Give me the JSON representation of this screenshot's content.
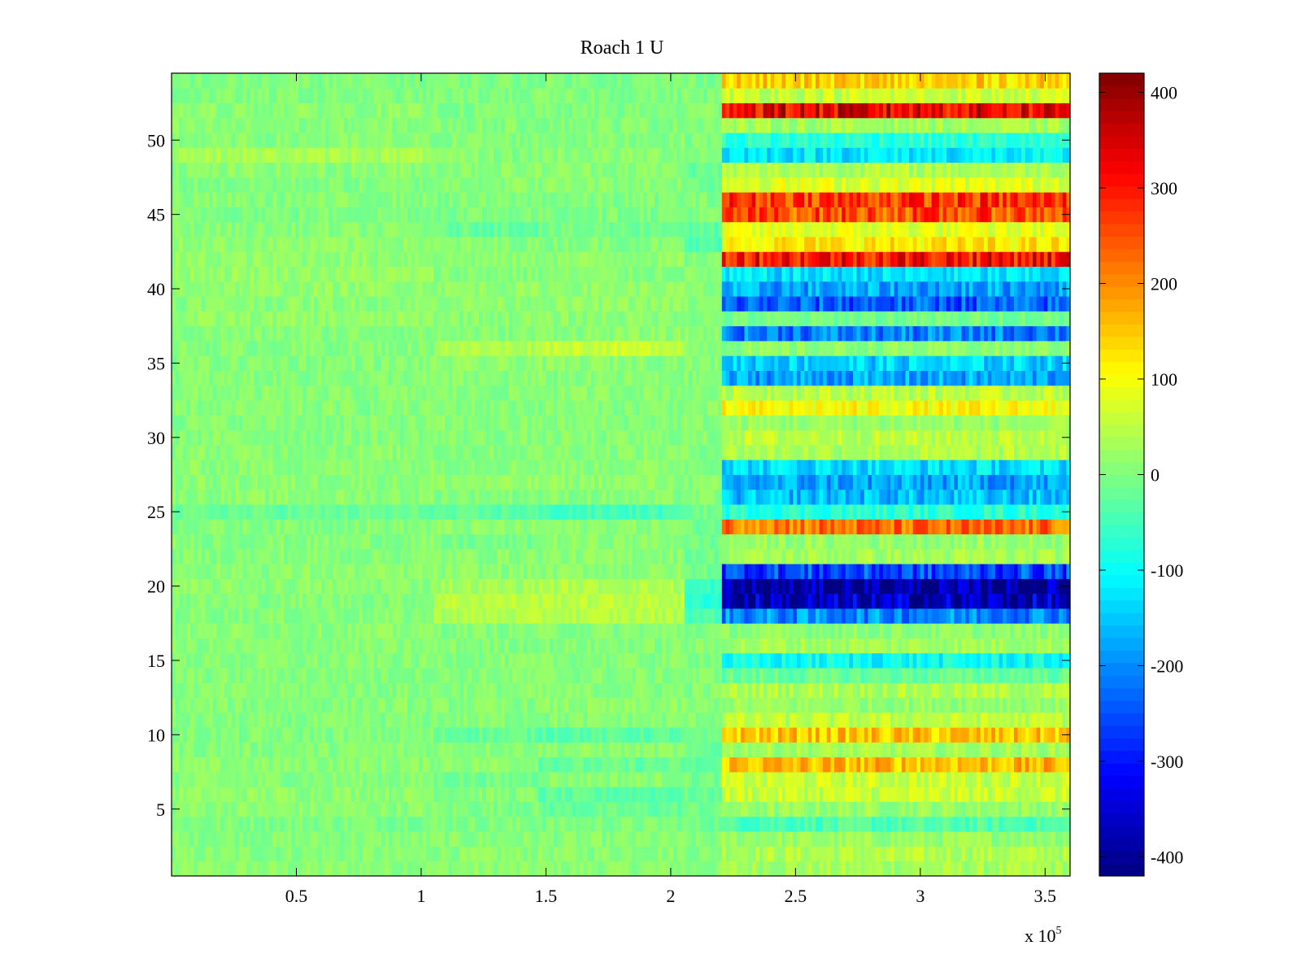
{
  "chart_data": {
    "type": "heatmap",
    "title": "Roach 1 U",
    "xlabel": "",
    "ylabel": "",
    "x_range": [
      0,
      360000
    ],
    "y_range": [
      0.5,
      54.5
    ],
    "x_ticks": [
      0.5,
      1,
      1.5,
      2,
      2.5,
      3,
      3.5
    ],
    "x_tick_labels": [
      "0.5",
      "1",
      "1.5",
      "2",
      "2.5",
      "3",
      "3.5"
    ],
    "x_multiplier_label": "x 10",
    "x_multiplier_exponent": "5",
    "y_ticks": [
      5,
      10,
      15,
      20,
      25,
      30,
      35,
      40,
      45,
      50
    ],
    "y_tick_labels": [
      "5",
      "10",
      "15",
      "20",
      "25",
      "30",
      "35",
      "40",
      "45",
      "50"
    ],
    "rows": 54,
    "change_point_x": [
      0,
      105000,
      147000,
      205000,
      220000,
      360000
    ],
    "row_means_by_segment": {
      "rows_1_to_54": {
        "seg_0_105k": [
          10,
          5,
          5,
          0,
          10,
          15,
          5,
          10,
          5,
          0,
          0,
          5,
          5,
          5,
          5,
          5,
          10,
          5,
          5,
          10,
          10,
          5,
          5,
          5,
          -20,
          10,
          10,
          10,
          10,
          5,
          5,
          5,
          5,
          5,
          5,
          5,
          5,
          15,
          10,
          15,
          20,
          15,
          15,
          5,
          0,
          5,
          0,
          10,
          35,
          5,
          5,
          10,
          0,
          0
        ],
        "seg_105k_147k": [
          10,
          10,
          5,
          0,
          0,
          5,
          -10,
          15,
          10,
          -20,
          5,
          5,
          5,
          5,
          5,
          5,
          5,
          40,
          50,
          30,
          10,
          10,
          -10,
          10,
          -30,
          5,
          15,
          10,
          5,
          5,
          5,
          5,
          5,
          5,
          10,
          40,
          5,
          10,
          15,
          15,
          5,
          10,
          5,
          -20,
          0,
          0,
          10,
          10,
          5,
          5,
          5,
          0,
          0,
          0
        ],
        "seg_147k_205k": [
          10,
          10,
          5,
          0,
          -20,
          -30,
          10,
          -20,
          10,
          -30,
          5,
          10,
          5,
          5,
          5,
          5,
          5,
          45,
          50,
          40,
          10,
          10,
          10,
          10,
          -50,
          5,
          15,
          10,
          10,
          5,
          5,
          5,
          10,
          5,
          10,
          60,
          10,
          10,
          15,
          15,
          5,
          15,
          5,
          -10,
          0,
          0,
          10,
          10,
          10,
          5,
          5,
          0,
          0,
          0
        ],
        "seg_205k_220k": [
          5,
          5,
          0,
          -10,
          -10,
          -20,
          -10,
          -30,
          -20,
          -20,
          5,
          5,
          5,
          5,
          5,
          5,
          0,
          -40,
          -70,
          -60,
          -10,
          -10,
          -10,
          -10,
          -10,
          5,
          5,
          5,
          5,
          5,
          5,
          5,
          5,
          5,
          5,
          10,
          10,
          5,
          5,
          5,
          5,
          5,
          -40,
          -30,
          0,
          0,
          -10,
          -20,
          5,
          5,
          10,
          10,
          0,
          0
        ],
        "seg_220k_360k": [
          30,
          40,
          20,
          -40,
          20,
          60,
          60,
          160,
          30,
          150,
          50,
          20,
          40,
          -20,
          -100,
          30,
          10,
          -200,
          -380,
          -410,
          -260,
          30,
          20,
          220,
          -70,
          -160,
          -180,
          -130,
          40,
          50,
          20,
          100,
          50,
          -180,
          -140,
          10,
          -210,
          -10,
          -240,
          -180,
          -130,
          310,
          120,
          80,
          250,
          270,
          80,
          40,
          -120,
          -70,
          30,
          330,
          60,
          140
        ]
      }
    },
    "colorbar": {
      "min": -420,
      "max": 420,
      "ticks": [
        -400,
        -300,
        -200,
        -100,
        0,
        100,
        200,
        300,
        400
      ],
      "tick_labels": [
        "-400",
        "-300",
        "-200",
        "-100",
        "0",
        "100",
        "200",
        "300",
        "400"
      ],
      "colormap": "jet"
    },
    "colors": {
      "axis": "#000000",
      "background": "#ffffff"
    }
  }
}
